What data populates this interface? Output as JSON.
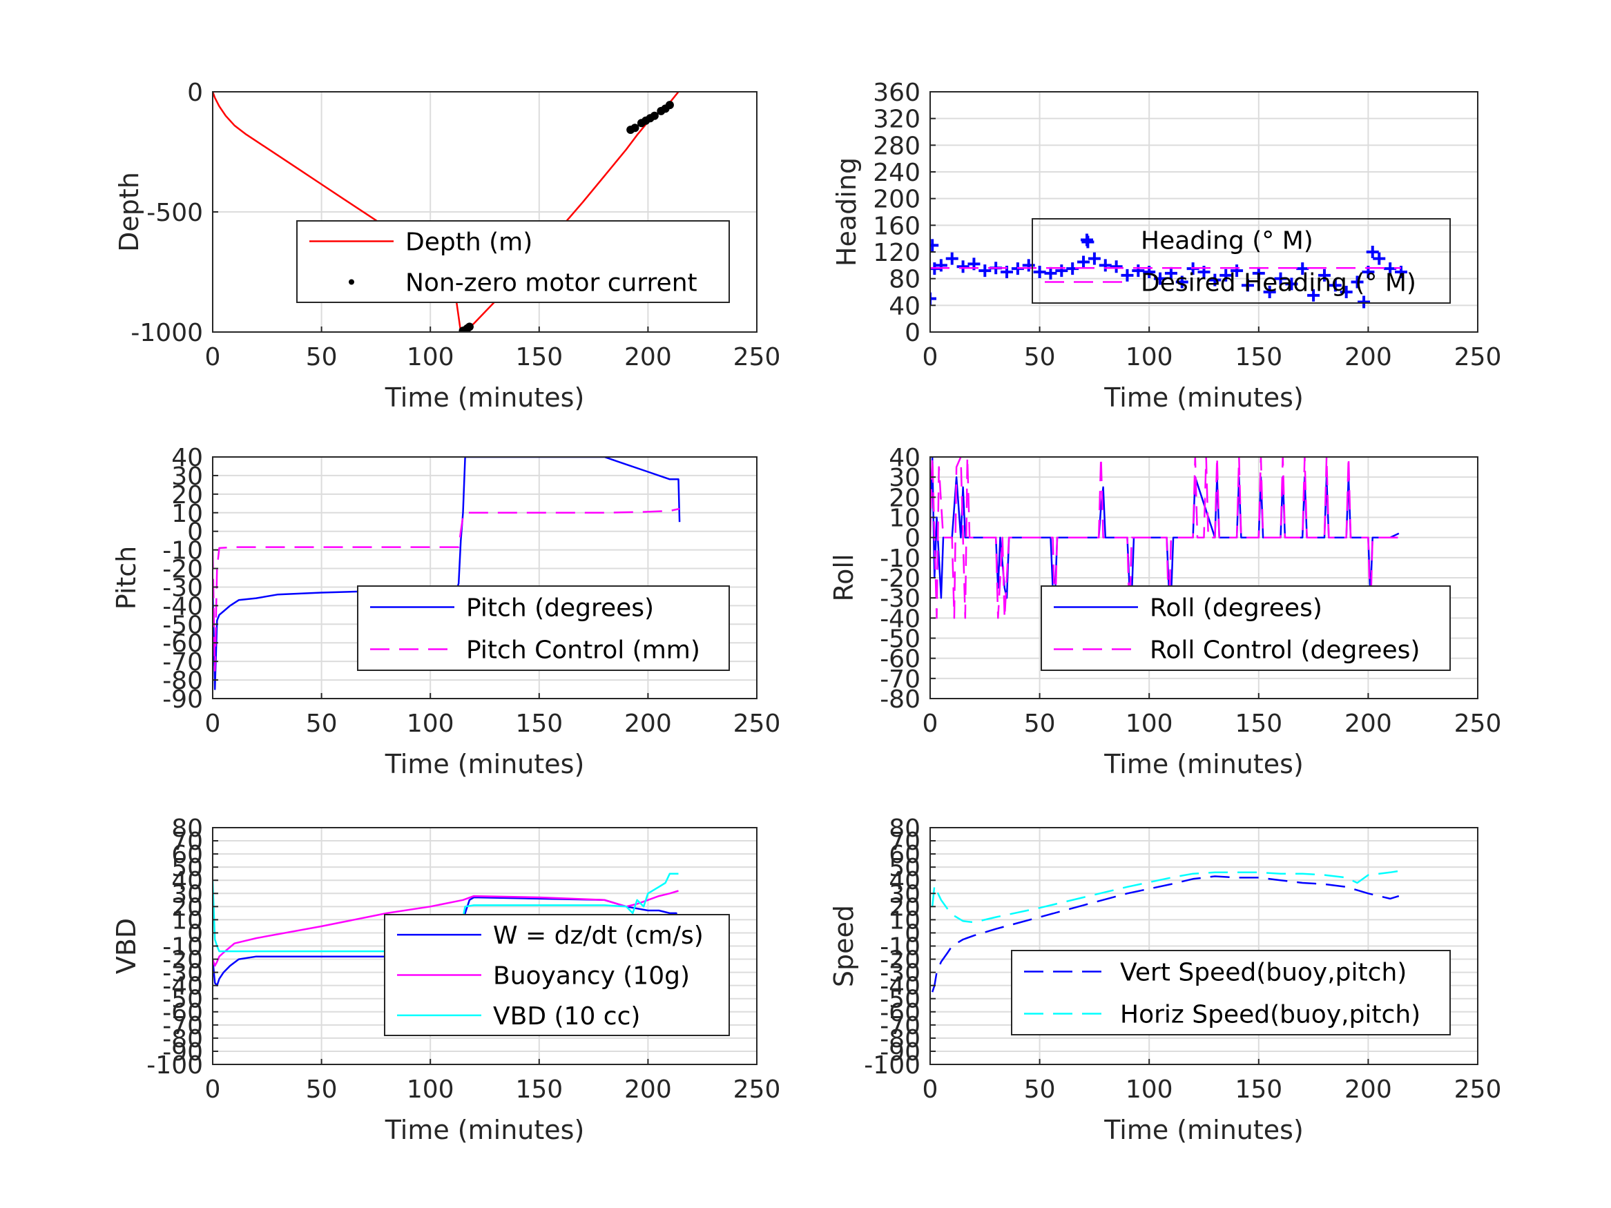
{
  "chart_data": [
    {
      "type": "line",
      "xlabel": "Time (minutes)",
      "ylabel": "Depth",
      "xlim": [
        0,
        250
      ],
      "ylim": [
        -1000,
        0
      ],
      "xticks": [
        "0",
        "50",
        "100",
        "150",
        "200",
        "250"
      ],
      "yticks": [
        -1000,
        -500,
        0
      ],
      "grid": true,
      "legend_position": "center-right",
      "series": [
        {
          "name": "Depth (m)",
          "color": "#ff0000",
          "style": "solid",
          "x": [
            0,
            1,
            3,
            6,
            10,
            15,
            20,
            30,
            40,
            50,
            60,
            70,
            80,
            90,
            100,
            110,
            114,
            116,
            118,
            120,
            130,
            140,
            150,
            160,
            170,
            180,
            190,
            195,
            200,
            205,
            210,
            214
          ],
          "y": [
            0,
            -25,
            -60,
            -100,
            -140,
            -175,
            -205,
            -265,
            -325,
            -385,
            -445,
            -505,
            -565,
            -625,
            -685,
            -745,
            -1000,
            -995,
            -980,
            -965,
            -870,
            -770,
            -670,
            -565,
            -460,
            -350,
            -240,
            -180,
            -125,
            -85,
            -45,
            0
          ]
        },
        {
          "name": "Non-zero motor current",
          "color": "#000000",
          "style": "markers",
          "x": [
            115,
            116,
            117,
            118,
            192,
            194,
            197,
            199,
            201,
            203,
            206,
            208,
            210
          ],
          "y": [
            -995,
            -992,
            -985,
            -978,
            -158,
            -150,
            -130,
            -120,
            -110,
            -100,
            -80,
            -70,
            -55
          ]
        }
      ]
    },
    {
      "type": "scatter",
      "xlabel": "Time (minutes)",
      "ylabel": "Heading",
      "xlim": [
        0,
        250
      ],
      "ylim": [
        0,
        360
      ],
      "xticks": [
        "0",
        "50",
        "100",
        "150",
        "200",
        "250"
      ],
      "yticks": [
        "0",
        "40",
        "80",
        "120",
        "160",
        "200",
        "240",
        "280",
        "320",
        "360"
      ],
      "grid": true,
      "legend_position": "center-right",
      "series": [
        {
          "name": "Heading (° M)",
          "color": "#0000ff",
          "style": "plus-markers",
          "x": [
            0,
            1,
            2,
            5,
            10,
            15,
            20,
            25,
            30,
            35,
            40,
            45,
            50,
            55,
            60,
            65,
            70,
            72,
            75,
            80,
            85,
            90,
            95,
            100,
            105,
            110,
            115,
            120,
            125,
            130,
            135,
            140,
            145,
            150,
            155,
            160,
            165,
            170,
            175,
            180,
            185,
            190,
            195,
            198,
            200,
            202,
            205,
            210,
            215
          ],
          "y": [
            50,
            130,
            95,
            100,
            110,
            98,
            102,
            92,
            96,
            90,
            95,
            100,
            90,
            88,
            92,
            95,
            105,
            135,
            110,
            100,
            98,
            85,
            92,
            90,
            80,
            88,
            75,
            95,
            90,
            78,
            85,
            92,
            70,
            88,
            60,
            80,
            72,
            95,
            55,
            85,
            70,
            60,
            75,
            45,
            90,
            120,
            110,
            95,
            90
          ]
        },
        {
          "name": "Desired Heading (° M)",
          "color": "#ff00ff",
          "style": "dashed",
          "x": [
            0,
            215
          ],
          "y": [
            96,
            96
          ]
        }
      ]
    },
    {
      "type": "line",
      "xlabel": "Time (minutes)",
      "ylabel": "Pitch",
      "xlim": [
        0,
        250
      ],
      "ylim": [
        -90,
        40
      ],
      "xticks": [
        "0",
        "50",
        "100",
        "150",
        "200",
        "250"
      ],
      "yticks": [
        "-90",
        "-80",
        "-70",
        "-60",
        "-50",
        "-40",
        "-30",
        "-20",
        "-10",
        "0",
        "10",
        "20",
        "30",
        "40"
      ],
      "grid": true,
      "legend_position": "center-right",
      "series": [
        {
          "name": "Pitch (degrees)",
          "color": "#0000ff",
          "style": "solid",
          "x": [
            0,
            1,
            2,
            3,
            5,
            8,
            12,
            20,
            30,
            50,
            80,
            100,
            112,
            113,
            114,
            115,
            116,
            120,
            140,
            160,
            180,
            190,
            200,
            205,
            210,
            214,
            214.5
          ],
          "y": [
            -30,
            -85,
            -48,
            -45,
            -43,
            -40,
            -37,
            -36,
            -34,
            -33,
            -32,
            -32,
            -32,
            -28,
            -5,
            10,
            40,
            40,
            40,
            40,
            40,
            36,
            32,
            30,
            28,
            28,
            5
          ]
        },
        {
          "name": "Pitch Control (mm)",
          "color": "#ff00ff",
          "style": "dashed",
          "x": [
            0,
            1,
            2,
            3,
            10,
            50,
            100,
            113,
            114,
            115,
            116,
            120,
            150,
            180,
            200,
            210,
            214,
            214.5
          ],
          "y": [
            -10,
            -75,
            -20,
            -9,
            -8.5,
            -8.5,
            -8.5,
            -8.5,
            0,
            8,
            10,
            10,
            10,
            10,
            10.5,
            11,
            12,
            12
          ]
        }
      ]
    },
    {
      "type": "line",
      "xlabel": "Time (minutes)",
      "ylabel": "Roll",
      "xlim": [
        0,
        250
      ],
      "ylim": [
        -80,
        40
      ],
      "xticks": [
        "0",
        "50",
        "100",
        "150",
        "200",
        "250"
      ],
      "yticks": [
        "-80",
        "-70",
        "-60",
        "-50",
        "-40",
        "-30",
        "-20",
        "-10",
        "0",
        "10",
        "20",
        "30",
        "40"
      ],
      "grid": true,
      "legend_position": "center-right",
      "series": [
        {
          "name": "Roll (degrees)",
          "color": "#0000ff",
          "style": "solid",
          "x": [
            0,
            1,
            2,
            3,
            5,
            6,
            10,
            12,
            14,
            15,
            16,
            17,
            18,
            20,
            30,
            31,
            32,
            34,
            35,
            36,
            50,
            55,
            56,
            57,
            58,
            60,
            77,
            78,
            79,
            80,
            90,
            91,
            92,
            93,
            100,
            108,
            109,
            110,
            111,
            120,
            121,
            130,
            131,
            132,
            140,
            141,
            142,
            150,
            151,
            152,
            160,
            161,
            162,
            170,
            171,
            172,
            180,
            181,
            182,
            190,
            191,
            192,
            200,
            201,
            202,
            203,
            210,
            214
          ],
          "y": [
            10,
            40,
            -20,
            10,
            -30,
            0,
            0,
            30,
            0,
            25,
            0,
            0,
            0,
            0,
            0,
            -25,
            0,
            -25,
            -30,
            0,
            0,
            0,
            -25,
            -30,
            0,
            0,
            0,
            15,
            25,
            0,
            0,
            -25,
            -30,
            0,
            0,
            0,
            -25,
            -30,
            0,
            0,
            30,
            0,
            30,
            0,
            0,
            30,
            0,
            0,
            30,
            0,
            0,
            30,
            0,
            0,
            30,
            0,
            0,
            30,
            0,
            0,
            30,
            0,
            0,
            -30,
            0,
            0,
            0,
            2
          ]
        },
        {
          "name": "Roll Control (degrees)",
          "color": "#ff00ff",
          "style": "dashed",
          "x": [
            0,
            1,
            3,
            4,
            6,
            10,
            11,
            12,
            14,
            16,
            17,
            18,
            30,
            31,
            33,
            34,
            36,
            37,
            56,
            57,
            58,
            77,
            78,
            79,
            90,
            91,
            92,
            108,
            109,
            110,
            120,
            121,
            122,
            125,
            126,
            127,
            130,
            131,
            132,
            140,
            141,
            142,
            150,
            151,
            152,
            160,
            161,
            162,
            170,
            171,
            172,
            180,
            181,
            182,
            190,
            191,
            192,
            200,
            201,
            202,
            203,
            214
          ],
          "y": [
            0,
            40,
            -40,
            35,
            0,
            0,
            -40,
            35,
            40,
            -40,
            40,
            0,
            0,
            -40,
            0,
            -40,
            0,
            0,
            0,
            -40,
            0,
            0,
            40,
            0,
            0,
            -40,
            0,
            0,
            -40,
            0,
            0,
            40,
            0,
            0,
            40,
            0,
            0,
            40,
            0,
            0,
            40,
            0,
            0,
            40,
            0,
            0,
            40,
            0,
            0,
            40,
            0,
            0,
            40,
            0,
            0,
            40,
            0,
            0,
            -40,
            0,
            0,
            0
          ]
        }
      ]
    },
    {
      "type": "line",
      "xlabel": "Time (minutes)",
      "ylabel": "VBD",
      "xlim": [
        0,
        250
      ],
      "ylim": [
        -100,
        80
      ],
      "xticks": [
        "0",
        "50",
        "100",
        "150",
        "200",
        "250"
      ],
      "yticks": [
        "-100",
        "-90",
        "-80",
        "-70",
        "-60",
        "-50",
        "-40",
        "-30",
        "-20",
        "-10",
        "0",
        "10",
        "20",
        "30",
        "40",
        "50",
        "60",
        "70",
        "80"
      ],
      "grid": true,
      "legend_position": "center-right",
      "series": [
        {
          "name": "W = dz/dt (cm/s)",
          "color": "#0000ff",
          "style": "solid",
          "x": [
            0,
            1,
            2,
            3,
            5,
            8,
            12,
            20,
            50,
            80,
            100,
            112,
            113,
            114,
            116,
            118,
            120,
            150,
            180,
            190,
            200,
            205,
            210,
            213,
            214
          ],
          "y": [
            -20,
            -38,
            -40,
            -35,
            -30,
            -25,
            -20,
            -18,
            -18,
            -18,
            -17,
            -17,
            -12,
            0,
            15,
            25,
            27,
            26,
            25,
            20,
            17,
            17,
            15,
            15,
            0
          ]
        },
        {
          "name": "Buoyancy (10g)",
          "color": "#ff00ff",
          "style": "solid",
          "x": [
            0,
            1,
            2,
            3,
            5,
            10,
            20,
            50,
            80,
            100,
            115,
            120,
            150,
            180,
            190,
            195,
            200,
            205,
            210,
            214
          ],
          "y": [
            -20,
            -25,
            -22,
            -18,
            -15,
            -8,
            -4,
            5,
            15,
            20,
            25,
            28,
            27,
            25,
            20,
            22,
            25,
            28,
            30,
            32
          ]
        },
        {
          "name": "VBD (10 cc)",
          "color": "#00ffff",
          "style": "solid",
          "x": [
            0,
            1,
            2,
            3,
            5,
            10,
            50,
            100,
            112,
            116,
            120,
            150,
            180,
            190,
            193,
            195,
            198,
            200,
            205,
            208,
            210,
            214
          ],
          "y": [
            40,
            -5,
            -10,
            -14,
            -14,
            -14,
            -14,
            -14,
            -14,
            20,
            21,
            21,
            21,
            20,
            15,
            25,
            20,
            30,
            35,
            38,
            45,
            45
          ]
        }
      ]
    },
    {
      "type": "line",
      "xlabel": "Time (minutes)",
      "ylabel": "Speed",
      "xlim": [
        0,
        250
      ],
      "ylim": [
        -100,
        80
      ],
      "xticks": [
        "0",
        "50",
        "100",
        "150",
        "200",
        "250"
      ],
      "yticks": [
        "-100",
        "-90",
        "-80",
        "-70",
        "-60",
        "-50",
        "-40",
        "-30",
        "-20",
        "-10",
        "0",
        "10",
        "20",
        "30",
        "40",
        "50",
        "60",
        "70",
        "80"
      ],
      "grid": true,
      "legend_position": "lower-right",
      "series": [
        {
          "name": "Vert Speed(buoy,pitch)",
          "color": "#0000ff",
          "style": "dashed",
          "x": [
            1,
            2,
            3,
            5,
            8,
            10,
            15,
            20,
            30,
            50,
            70,
            90,
            110,
            120,
            130,
            140,
            150,
            160,
            170,
            180,
            190,
            200,
            205,
            210,
            214
          ],
          "y": [
            -45,
            -40,
            -30,
            -22,
            -15,
            -10,
            -5,
            -2,
            3,
            12,
            21,
            30,
            37,
            41,
            43,
            42,
            42,
            40,
            38,
            37,
            35,
            30,
            28,
            26,
            28
          ]
        },
        {
          "name": "Horiz Speed(buoy,pitch)",
          "color": "#00ffff",
          "style": "dashed",
          "x": [
            1,
            2,
            3,
            5,
            8,
            10,
            15,
            20,
            30,
            50,
            70,
            90,
            110,
            120,
            130,
            140,
            150,
            160,
            170,
            180,
            190,
            195,
            200,
            205,
            210,
            214
          ],
          "y": [
            20,
            36,
            32,
            25,
            18,
            14,
            9,
            8,
            12,
            19,
            27,
            35,
            42,
            45,
            46,
            46,
            46,
            45,
            45,
            44,
            42,
            38,
            44,
            45,
            46,
            47
          ]
        }
      ]
    }
  ]
}
